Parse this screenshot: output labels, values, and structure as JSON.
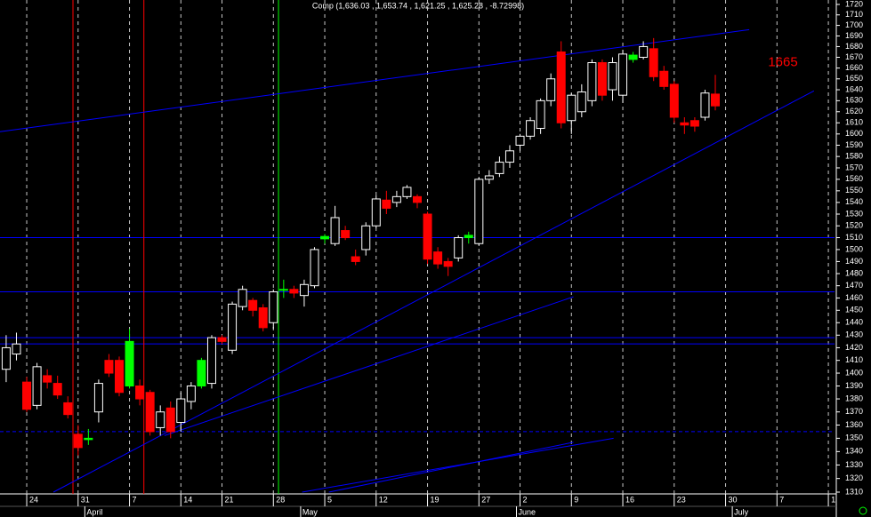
{
  "chart_data": {
    "type": "candlestick",
    "title": "Comp (1,636.03 , 1,653.74 , 1,621.25 , 1,625.28 , -8.72998)",
    "x": [
      -2,
      -1,
      0,
      1,
      2,
      3,
      4,
      5,
      6,
      7,
      8,
      9,
      10,
      11,
      12,
      13,
      14,
      15,
      16,
      17,
      18,
      19,
      20,
      21,
      22,
      23,
      24,
      25,
      26,
      27,
      28,
      29,
      30,
      31,
      32,
      33,
      34,
      35,
      36,
      37,
      38,
      39,
      40,
      41,
      42,
      43,
      44,
      45,
      46,
      47,
      48,
      49,
      50,
      51,
      52,
      53,
      54,
      55,
      56,
      57,
      58,
      59,
      60,
      61,
      62,
      63,
      64,
      65,
      66,
      67
    ],
    "open": [
      1403,
      1415,
      1393,
      1375,
      1398,
      1392,
      1377,
      1353,
      1349,
      1370,
      1410,
      1410,
      1390,
      1390,
      1385,
      1358,
      1373,
      1362,
      1378,
      1390,
      1392,
      1428,
      1418,
      1453,
      1458,
      1452,
      1440,
      1467,
      1467,
      1462,
      1470,
      1511,
      1505,
      1516,
      1494,
      1500,
      1520,
      1542,
      1540,
      1545,
      1545,
      1530,
      1498,
      1490,
      1493,
      1510,
      1505,
      1560,
      1565,
      1575,
      1590,
      1598,
      1605,
      1630,
      1675,
      1612,
      1620,
      1630,
      1665,
      1640,
      1635,
      1672,
      1670,
      1678,
      1657,
      1645,
      1610,
      1612,
      1615,
      1636.03
    ],
    "high": [
      1430,
      1432,
      1397,
      1408,
      1403,
      1398,
      1382,
      1360,
      1357,
      1395,
      1415,
      1413,
      1435,
      1395,
      1387,
      1375,
      1378,
      1385,
      1393,
      1412,
      1430,
      1430,
      1457,
      1470,
      1460,
      1455,
      1467,
      1475,
      1470,
      1475,
      1502,
      1513,
      1537,
      1520,
      1500,
      1523,
      1546,
      1550,
      1550,
      1555,
      1547,
      1532,
      1502,
      1493,
      1512,
      1515,
      1562,
      1568,
      1580,
      1590,
      1600,
      1615,
      1632,
      1655,
      1685,
      1637,
      1645,
      1668,
      1668,
      1670,
      1677,
      1675,
      1685,
      1688,
      1662,
      1648,
      1615,
      1615,
      1640,
      1653.74
    ],
    "low": [
      1393,
      1410,
      1370,
      1372,
      1388,
      1380,
      1365,
      1337,
      1345,
      1362,
      1397,
      1382,
      1388,
      1375,
      1352,
      1352,
      1350,
      1355,
      1372,
      1388,
      1388,
      1423,
      1415,
      1450,
      1445,
      1433,
      1435,
      1460,
      1460,
      1453,
      1468,
      1505,
      1503,
      1508,
      1487,
      1495,
      1518,
      1530,
      1536,
      1543,
      1535,
      1488,
      1484,
      1478,
      1490,
      1505,
      1503,
      1556,
      1562,
      1570,
      1585,
      1595,
      1600,
      1625,
      1605,
      1600,
      1615,
      1625,
      1630,
      1630,
      1628,
      1665,
      1668,
      1648,
      1640,
      1610,
      1600,
      1602,
      1612,
      1621.25
    ],
    "close": [
      1420,
      1423,
      1372,
      1405,
      1393,
      1383,
      1368,
      1343,
      1350,
      1392,
      1400,
      1385,
      1425,
      1380,
      1355,
      1370,
      1355,
      1380,
      1390,
      1410,
      1428,
      1425,
      1455,
      1467,
      1450,
      1436,
      1465,
      1467,
      1464,
      1471,
      1500,
      1509,
      1527,
      1510,
      1490,
      1520,
      1543,
      1535,
      1545,
      1553,
      1540,
      1492,
      1488,
      1486,
      1510,
      1512,
      1560,
      1563,
      1575,
      1585,
      1598,
      1612,
      1630,
      1650,
      1610,
      1635,
      1638,
      1665,
      1635,
      1665,
      1673,
      1668,
      1680,
      1652,
      1643,
      1615,
      1608,
      1607,
      1637,
      1625.28
    ],
    "colors": [
      "#ffffff",
      "#ffffff",
      "#ff0000",
      "#ffffff",
      "#ff0000",
      "#ff0000",
      "#ff0000",
      "#ff0000",
      "#00ff00",
      "#ffffff",
      "#ff0000",
      "#ff0000",
      "#00ff00",
      "#ff0000",
      "#ff0000",
      "#ffffff",
      "#ff0000",
      "#ffffff",
      "#ffffff",
      "#00ff00",
      "#ffffff",
      "#ff0000",
      "#ffffff",
      "#ffffff",
      "#ff0000",
      "#ff0000",
      "#ffffff",
      "#00ff00",
      "#ff0000",
      "#ffffff",
      "#ffffff",
      "#00ff00",
      "#ffffff",
      "#ff0000",
      "#ff0000",
      "#ffffff",
      "#ffffff",
      "#ff0000",
      "#ffffff",
      "#ffffff",
      "#ff0000",
      "#ff0000",
      "#ff0000",
      "#ff0000",
      "#ffffff",
      "#00ff00",
      "#ffffff",
      "#ffffff",
      "#ffffff",
      "#ffffff",
      "#ffffff",
      "#ffffff",
      "#ffffff",
      "#ffffff",
      "#ff0000",
      "#ffffff",
      "#ffffff",
      "#ffffff",
      "#ff0000",
      "#ffffff",
      "#ffffff",
      "#00ff00",
      "#ffffff",
      "#ff0000",
      "#ff0000",
      "#ff0000",
      "#ff0000",
      "#ff0000",
      "#ffffff",
      "#ff0000"
    ],
    "xlim": [
      -2.6,
      78.6
    ],
    "xticks": [
      {
        "value": 0,
        "label": "24"
      },
      {
        "value": 5,
        "label": "31"
      },
      {
        "value": 10,
        "label": "7"
      },
      {
        "value": 15,
        "label": "14"
      },
      {
        "value": 19,
        "label": "21"
      },
      {
        "value": 24,
        "label": "28"
      },
      {
        "value": 29,
        "label": "5"
      },
      {
        "value": 34,
        "label": "12"
      },
      {
        "value": 39,
        "label": "19"
      },
      {
        "value": 44,
        "label": "27"
      },
      {
        "value": 48,
        "label": "2"
      },
      {
        "value": 53,
        "label": "9"
      },
      {
        "value": 58,
        "label": "16"
      },
      {
        "value": 63,
        "label": "23"
      },
      {
        "value": 68,
        "label": "30"
      },
      {
        "value": 73,
        "label": "7"
      },
      {
        "value": 78,
        "label": "1"
      }
    ],
    "month_labels": [
      {
        "value": 6,
        "label": "April"
      },
      {
        "value": 27,
        "label": "May"
      },
      {
        "value": 48,
        "label": "June"
      },
      {
        "value": 69,
        "label": "July"
      }
    ],
    "ylim": [
      1310,
      1720
    ],
    "log_scale": true,
    "yticks": [
      1310,
      1320,
      1330,
      1340,
      1350,
      1360,
      1370,
      1380,
      1390,
      1400,
      1410,
      1420,
      1430,
      1440,
      1450,
      1460,
      1470,
      1480,
      1490,
      1500,
      1510,
      1520,
      1530,
      1540,
      1550,
      1560,
      1570,
      1580,
      1590,
      1600,
      1610,
      1620,
      1630,
      1640,
      1650,
      1660,
      1670,
      1680,
      1690,
      1700,
      1710,
      1720
    ],
    "grid": true,
    "hlines": [
      {
        "value": 1510,
        "color": "#0000ff",
        "dashed": false
      },
      {
        "value": 1465,
        "color": "#0000ff",
        "dashed": false
      },
      {
        "value": 1428,
        "color": "#0000ff",
        "dashed": false
      },
      {
        "value": 1423,
        "color": "#0000ff",
        "dashed": false
      },
      {
        "value": 1355,
        "color": "#0000ff",
        "dashed": true
      }
    ],
    "trendlines": [
      {
        "x1": -2.6,
        "y1": 1602,
        "x2": 70.3,
        "y2": 1696,
        "color": "#0000ff"
      },
      {
        "x1": 2.6,
        "y1": 1310,
        "x2": 76.6,
        "y2": 1639,
        "color": "#0000ff"
      },
      {
        "x1": 13.4,
        "y1": 1352,
        "x2": 53.2,
        "y2": 1461,
        "color": "#0000ff"
      },
      {
        "x1": 26.8,
        "y1": 1310,
        "x2": 57.1,
        "y2": 1350,
        "color": "#0000ff"
      },
      {
        "x1": 29.4,
        "y1": 1310,
        "x2": 53.2,
        "y2": 1347,
        "color": "#0000ff"
      }
    ],
    "vlines": [
      {
        "x": 4.5,
        "color": "#ff0000"
      },
      {
        "x": 11.4,
        "color": "#ff0000"
      },
      {
        "x": 24.5,
        "color": "#00ff00"
      }
    ],
    "annotation": {
      "label": "1665",
      "value": 1665,
      "color": "#ff0000"
    }
  }
}
